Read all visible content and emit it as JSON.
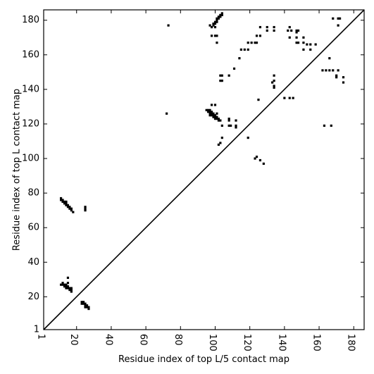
{
  "chart_data": {
    "type": "scatter",
    "title": "",
    "xlabel": "Residue index of top L/5 contact map",
    "ylabel": "Residue index of top L contact map",
    "xlim": [
      1,
      186
    ],
    "ylim": [
      1,
      186
    ],
    "x_ticks": [
      1,
      20,
      40,
      60,
      80,
      100,
      120,
      140,
      160,
      180
    ],
    "x_tick_labels": [
      "1",
      "20",
      "40",
      "60",
      "80",
      "100",
      "120",
      "140",
      "160",
      "180"
    ],
    "y_ticks": [
      1,
      20,
      40,
      60,
      80,
      100,
      120,
      140,
      160,
      180
    ],
    "y_tick_labels": [
      "1",
      "20",
      "40",
      "60",
      "80",
      "100",
      "120",
      "140",
      "160",
      "180"
    ],
    "grid": false,
    "marker_color": "#000000",
    "diagonal": {
      "from": [
        1,
        1
      ],
      "to": [
        186,
        186
      ]
    },
    "lower_contacts": [
      [
        11,
        77
      ],
      [
        11,
        76
      ],
      [
        12,
        76
      ],
      [
        12,
        75
      ],
      [
        13,
        75
      ],
      [
        13,
        74
      ],
      [
        14,
        75
      ],
      [
        14,
        74
      ],
      [
        14,
        73
      ],
      [
        15,
        73
      ],
      [
        15,
        72
      ],
      [
        16,
        72
      ],
      [
        16,
        71
      ],
      [
        17,
        71
      ],
      [
        17,
        70
      ],
      [
        18,
        69
      ],
      [
        25,
        72
      ],
      [
        25,
        71
      ],
      [
        25,
        70
      ],
      [
        11,
        27
      ],
      [
        12,
        28
      ],
      [
        12,
        27
      ],
      [
        13,
        27
      ],
      [
        13,
        26
      ],
      [
        14,
        27
      ],
      [
        14,
        26
      ],
      [
        14,
        25
      ],
      [
        15,
        28
      ],
      [
        15,
        26
      ],
      [
        15,
        25
      ],
      [
        15,
        31
      ],
      [
        16,
        25
      ],
      [
        16,
        24
      ],
      [
        17,
        25
      ],
      [
        17,
        24
      ],
      [
        17,
        23
      ],
      [
        23,
        17
      ],
      [
        23,
        16
      ],
      [
        24,
        17
      ],
      [
        24,
        16
      ],
      [
        25,
        16
      ],
      [
        25,
        15
      ],
      [
        25,
        14
      ],
      [
        26,
        15
      ],
      [
        26,
        14
      ],
      [
        27,
        14
      ],
      [
        27,
        13
      ]
    ],
    "upper_contacts": [
      [
        73,
        177
      ],
      [
        72,
        126
      ],
      [
        97,
        177
      ],
      [
        98,
        176
      ],
      [
        99,
        178
      ],
      [
        99,
        177
      ],
      [
        100,
        179
      ],
      [
        100,
        178
      ],
      [
        101,
        181
      ],
      [
        101,
        180
      ],
      [
        101,
        179
      ],
      [
        102,
        182
      ],
      [
        102,
        181
      ],
      [
        103,
        183
      ],
      [
        103,
        182
      ],
      [
        104,
        184
      ],
      [
        104,
        183
      ],
      [
        98,
        171
      ],
      [
        100,
        171
      ],
      [
        101,
        171
      ],
      [
        100,
        176
      ],
      [
        101,
        167
      ],
      [
        103,
        148
      ],
      [
        104,
        148
      ],
      [
        103,
        145
      ],
      [
        104,
        145
      ],
      [
        108,
        148
      ],
      [
        111,
        152
      ],
      [
        114,
        158
      ],
      [
        115,
        163
      ],
      [
        117,
        163
      ],
      [
        119,
        167
      ],
      [
        119,
        163
      ],
      [
        121,
        167
      ],
      [
        123,
        167
      ],
      [
        124,
        167
      ],
      [
        124,
        171
      ],
      [
        126,
        171
      ],
      [
        126,
        176
      ],
      [
        130,
        176
      ],
      [
        130,
        174
      ],
      [
        134,
        176
      ],
      [
        134,
        174
      ],
      [
        134,
        148
      ],
      [
        134,
        145
      ],
      [
        134,
        142
      ],
      [
        133,
        144
      ],
      [
        134,
        141
      ],
      [
        142,
        174
      ],
      [
        143,
        176
      ],
      [
        144,
        174
      ],
      [
        143,
        170
      ],
      [
        147,
        174
      ],
      [
        147,
        173
      ],
      [
        148,
        174
      ],
      [
        147,
        170
      ],
      [
        147,
        167
      ],
      [
        148,
        167
      ],
      [
        151,
        170
      ],
      [
        151,
        167
      ],
      [
        151,
        163
      ],
      [
        153,
        166
      ],
      [
        155,
        166
      ],
      [
        155,
        163
      ],
      [
        158,
        166
      ],
      [
        140,
        135
      ],
      [
        143,
        135
      ],
      [
        145,
        135
      ],
      [
        95,
        128
      ],
      [
        96,
        128
      ],
      [
        96,
        127
      ],
      [
        97,
        128
      ],
      [
        97,
        127
      ],
      [
        97,
        126
      ],
      [
        97,
        125
      ],
      [
        98,
        127
      ],
      [
        98,
        126
      ],
      [
        98,
        125
      ],
      [
        99,
        126
      ],
      [
        99,
        125
      ],
      [
        99,
        124
      ],
      [
        100,
        125
      ],
      [
        100,
        124
      ],
      [
        100,
        123
      ],
      [
        101,
        124
      ],
      [
        101,
        123
      ],
      [
        102,
        123
      ],
      [
        102,
        122
      ],
      [
        103,
        122
      ],
      [
        98,
        131
      ],
      [
        100,
        131
      ],
      [
        101,
        126
      ],
      [
        104,
        119
      ],
      [
        104,
        112
      ],
      [
        103,
        109
      ],
      [
        102,
        108
      ],
      [
        108,
        123
      ],
      [
        108,
        122
      ],
      [
        108,
        119
      ],
      [
        109,
        119
      ],
      [
        112,
        122
      ],
      [
        112,
        119
      ],
      [
        112,
        118
      ],
      [
        119,
        112
      ],
      [
        124,
        101
      ],
      [
        123,
        100
      ],
      [
        126,
        99
      ],
      [
        128,
        97
      ],
      [
        125,
        134
      ],
      [
        162,
        151
      ],
      [
        164,
        151
      ],
      [
        166,
        158
      ],
      [
        166,
        151
      ],
      [
        168,
        151
      ],
      [
        171,
        151
      ],
      [
        170,
        148
      ],
      [
        170,
        147
      ],
      [
        174,
        147
      ],
      [
        174,
        144
      ],
      [
        168,
        181
      ],
      [
        171,
        181
      ],
      [
        172,
        181
      ],
      [
        171,
        177
      ],
      [
        163,
        119
      ],
      [
        167,
        119
      ]
    ]
  }
}
